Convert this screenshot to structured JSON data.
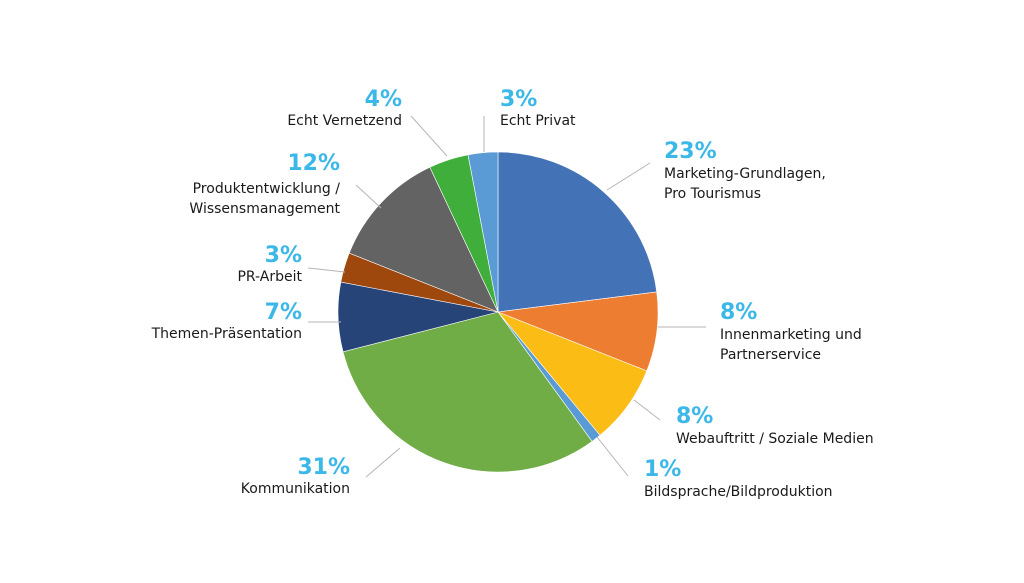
{
  "chart_data": {
    "type": "pie",
    "start_angle_deg": 0,
    "direction": "clockwise",
    "percent_color": "#3bb7e8",
    "slices": [
      {
        "label": [
          "Marketing-Grundlagen,",
          "Pro Tourismus"
        ],
        "percent_text": "23%",
        "value": 23,
        "color": "#4472b6",
        "label_side": "right"
      },
      {
        "label": [
          "Innenmarketing und",
          "Partnerservice"
        ],
        "percent_text": "8%",
        "value": 8,
        "color": "#ed7d31",
        "label_side": "right"
      },
      {
        "label": [
          "Webauftritt / Soziale Medien"
        ],
        "percent_text": "8%",
        "value": 8,
        "color": "#fbbc15",
        "label_side": "right"
      },
      {
        "label": [
          "Bildsprache/Bildproduktion"
        ],
        "percent_text": "1%",
        "value": 1,
        "color": "#5b9bd5",
        "label_side": "right"
      },
      {
        "label": [
          "Kommunikation"
        ],
        "percent_text": "31%",
        "value": 31,
        "color": "#70ad47",
        "label_side": "left"
      },
      {
        "label": [
          "Themen-Präsentation"
        ],
        "percent_text": "7%",
        "value": 7,
        "color": "#264478",
        "label_side": "left"
      },
      {
        "label": [
          "PR-Arbeit"
        ],
        "percent_text": "3%",
        "value": 3,
        "color": "#9e480e",
        "label_side": "left"
      },
      {
        "label": [
          "Produktentwicklung /",
          "Wissensmanagement"
        ],
        "percent_text": "12%",
        "value": 12,
        "color": "#636363",
        "label_side": "left"
      },
      {
        "label": [
          "Echt Vernetzend"
        ],
        "percent_text": "4%",
        "value": 4,
        "color": "#3fae3a",
        "label_side": "left"
      },
      {
        "label": [
          "Echt Privat"
        ],
        "percent_text": "3%",
        "value": 3,
        "color": "#5b9bd5",
        "label_side": "right"
      }
    ]
  }
}
